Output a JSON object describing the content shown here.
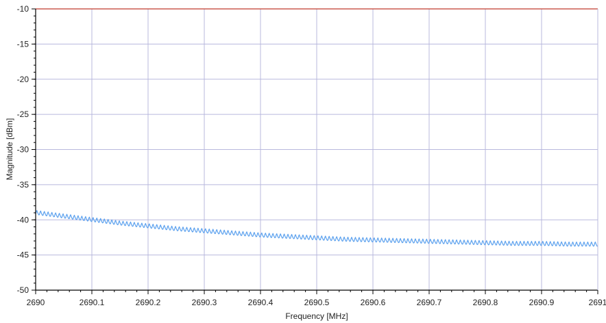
{
  "chart_data": {
    "type": "line",
    "title": "",
    "xlabel": "Frequency [MHz]",
    "ylabel": "Magnitude [dBm]",
    "xlim": [
      2690,
      2691
    ],
    "ylim": [
      -50,
      -10
    ],
    "x_ticks": [
      "2690",
      "2690.1",
      "2690.2",
      "2690.3",
      "2690.4",
      "2690.5",
      "2690.6",
      "2690.7",
      "2690.8",
      "2690.9",
      "2691"
    ],
    "y_ticks": [
      "-10",
      "-15",
      "-20",
      "-25",
      "-30",
      "-35",
      "-40",
      "-45",
      "-50"
    ],
    "grid": true,
    "reference_level": -10,
    "series": [
      {
        "color": "#5aa0ee",
        "x": [
          2690,
          2690.05,
          2690.1,
          2690.15,
          2690.2,
          2690.25,
          2690.3,
          2690.35,
          2690.4,
          2690.45,
          2690.5,
          2690.55,
          2690.6,
          2690.65,
          2690.7,
          2690.75,
          2690.8,
          2690.85,
          2690.9,
          2690.95,
          2691
        ],
        "y": [
          -39.2,
          -39.7,
          -40.2,
          -40.7,
          -41.1,
          -41.5,
          -41.8,
          -42.1,
          -42.4,
          -42.6,
          -42.8,
          -43.0,
          -43.1,
          -43.2,
          -43.3,
          -43.4,
          -43.5,
          -43.6,
          -43.6,
          -43.7,
          -43.7
        ]
      }
    ],
    "colors": {
      "grid": "#b8b8dd",
      "reference_line": "#c0392b",
      "axis": "#000000"
    }
  }
}
